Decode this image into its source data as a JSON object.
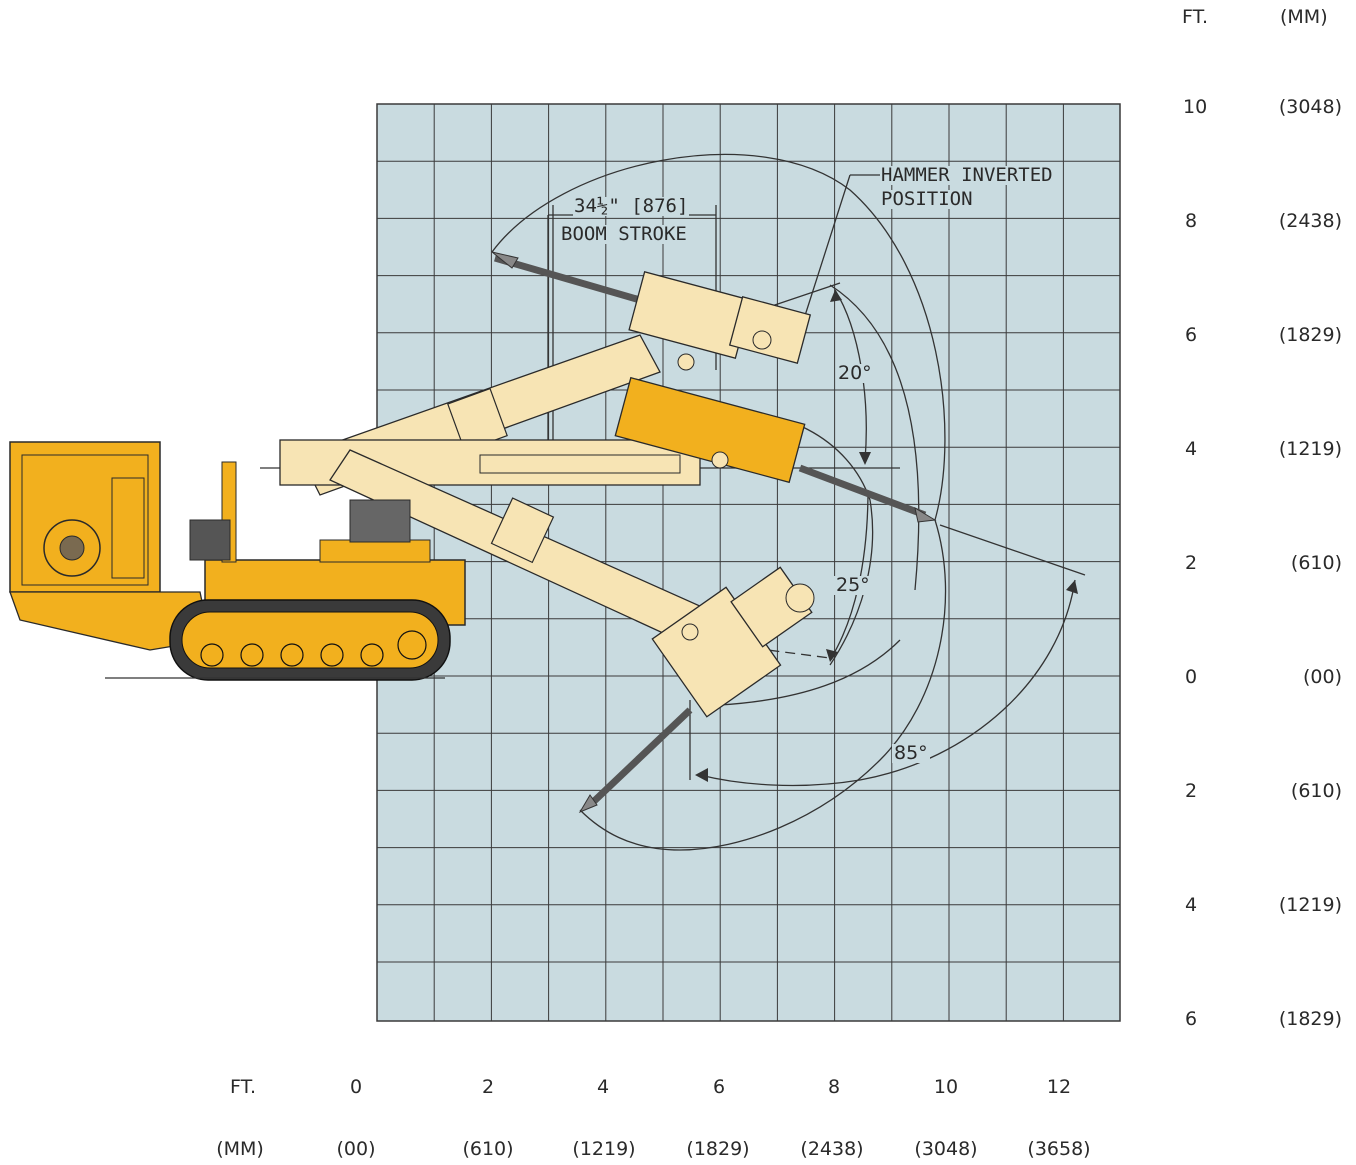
{
  "axes": {
    "right_header_ft": "FT.",
    "right_header_mm": "(MM)",
    "right_ticks": [
      {
        "ft": "10",
        "mm": "(3048)"
      },
      {
        "ft": "8",
        "mm": "(2438)"
      },
      {
        "ft": "6",
        "mm": "(1829)"
      },
      {
        "ft": "4",
        "mm": "(1219)"
      },
      {
        "ft": "2",
        "mm": "(610)"
      },
      {
        "ft": "0",
        "mm": "(00)"
      },
      {
        "ft": "2",
        "mm": "(610)"
      },
      {
        "ft": "4",
        "mm": "(1219)"
      },
      {
        "ft": "6",
        "mm": "(1829)"
      }
    ],
    "bottom_header_ft": "FT.",
    "bottom_header_mm": "(MM)",
    "bottom_ticks": [
      {
        "ft": "0",
        "mm": "(00)"
      },
      {
        "ft": "2",
        "mm": "(610)"
      },
      {
        "ft": "4",
        "mm": "(1219)"
      },
      {
        "ft": "6",
        "mm": "(1829)"
      },
      {
        "ft": "8",
        "mm": "(2438)"
      },
      {
        "ft": "10",
        "mm": "(3048)"
      },
      {
        "ft": "12",
        "mm": "(3658)"
      }
    ]
  },
  "annotations": {
    "boom_stroke_dim": "34½\" [876]",
    "boom_stroke_label": "BOOM STROKE",
    "hammer_inverted_line1": "HAMMER INVERTED",
    "hammer_inverted_line2": "POSITION",
    "angle_top": "20°",
    "angle_mid": "25°",
    "angle_bottom": "85°"
  },
  "colors": {
    "grid_fill": "#c9dbe0",
    "grid_line": "#3a3a3a",
    "machine_body": "#f2b01e",
    "boom_light": "#f7e4b4",
    "outline": "#2a2a2a"
  }
}
